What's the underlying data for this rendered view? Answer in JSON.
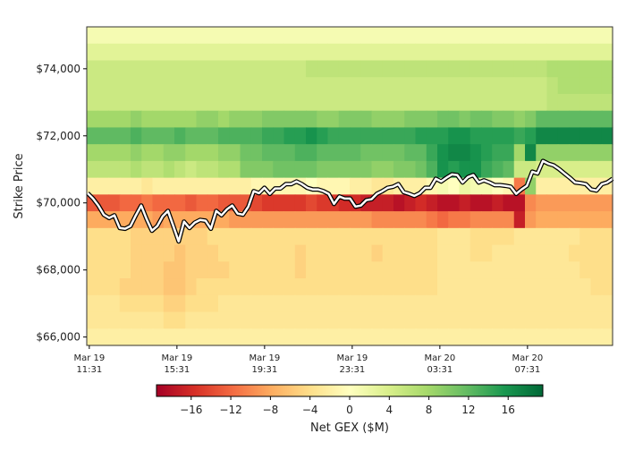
{
  "chart_data": {
    "type": "heatmap",
    "ylabel": "Strike Price",
    "colorbar_label": "Net GEX ($M)",
    "colormap": "RdYlGn",
    "color_range": [
      -19.5,
      19.5
    ],
    "colorbar_ticks": [
      "−16",
      "−12",
      "−8",
      "−4",
      "0",
      "4",
      "8",
      "12",
      "16"
    ],
    "colorbar_tick_values": [
      -16,
      -12,
      -8,
      -4,
      0,
      4,
      8,
      12,
      16
    ],
    "time_range": [
      "Mar 19 11:24",
      "Mar 20 11:24"
    ],
    "x_ticks": [
      {
        "line1": "Mar 19",
        "line2": "11:31"
      },
      {
        "line1": "Mar 19",
        "line2": "15:31"
      },
      {
        "line1": "Mar 19",
        "line2": "19:31"
      },
      {
        "line1": "Mar 19",
        "line2": "23:31"
      },
      {
        "line1": "Mar 20",
        "line2": "03:31"
      },
      {
        "line1": "Mar 20",
        "line2": "07:31"
      }
    ],
    "y_ticks": [
      {
        "value": 74000,
        "label": "$74,000"
      },
      {
        "value": 72000,
        "label": "$72,000"
      },
      {
        "value": 70000,
        "label": "$70,000"
      },
      {
        "value": 68000,
        "label": "$68,000"
      },
      {
        "value": 66000,
        "label": "$66,000"
      }
    ],
    "ylim": [
      65750,
      75250
    ],
    "strikes": [
      75000,
      74500,
      74000,
      73500,
      73000,
      72500,
      72000,
      71500,
      71000,
      70500,
      70000,
      69500,
      69000,
      68500,
      68000,
      67500,
      67000,
      66500,
      66000
    ],
    "z": [
      [
        1,
        1,
        1,
        1,
        1,
        1,
        1,
        1,
        1,
        1,
        1,
        1,
        1,
        1,
        1,
        1,
        1,
        1,
        1,
        1,
        1,
        1,
        1,
        1,
        1,
        1,
        1,
        1,
        1,
        1,
        1,
        1,
        1,
        1,
        1,
        1,
        1,
        1,
        1,
        1,
        1,
        1,
        1,
        1,
        1,
        1,
        1,
        1
      ],
      [
        3,
        3,
        3,
        3,
        3,
        3,
        3,
        3,
        3,
        3,
        3,
        3,
        3,
        3,
        3,
        3,
        3,
        3,
        3,
        3,
        3,
        3,
        3,
        3,
        3,
        3,
        3,
        3,
        3,
        3,
        3,
        3,
        3,
        3,
        3,
        3,
        3,
        3,
        3,
        3,
        3,
        3,
        3,
        3,
        3,
        3,
        3,
        3
      ],
      [
        5,
        5,
        5,
        5,
        5,
        5,
        5,
        5,
        5,
        5,
        5,
        5,
        5,
        5,
        5,
        5,
        5,
        5,
        5,
        5,
        6,
        6,
        6,
        6,
        6,
        6,
        6,
        6,
        6,
        6,
        6,
        6,
        6,
        6,
        6,
        6,
        6,
        6,
        6,
        6,
        6,
        6,
        7,
        7,
        7,
        7,
        7,
        7
      ],
      [
        5,
        5,
        5,
        5,
        5,
        5,
        5,
        5,
        5,
        5,
        5,
        5,
        5,
        5,
        5,
        5,
        5,
        5,
        5,
        5,
        5,
        5,
        5,
        5,
        5,
        5,
        5,
        5,
        5,
        5,
        5,
        5,
        5,
        5,
        5,
        5,
        5,
        5,
        5,
        5,
        5,
        5,
        6,
        7,
        7,
        7,
        7,
        7
      ],
      [
        5,
        5,
        5,
        5,
        5,
        5,
        5,
        5,
        5,
        5,
        5,
        5,
        5,
        5,
        5,
        5,
        5,
        5,
        5,
        5,
        5,
        5,
        5,
        5,
        5,
        5,
        5,
        5,
        5,
        5,
        5,
        5,
        5,
        5,
        5,
        5,
        5,
        5,
        5,
        5,
        5,
        5,
        6,
        6,
        6,
        6,
        6,
        6
      ],
      [
        8,
        8,
        8,
        8,
        9,
        8,
        8,
        8,
        8,
        8,
        9,
        9,
        8,
        9,
        9,
        9,
        10,
        10,
        10,
        10,
        10,
        9,
        9,
        10,
        10,
        10,
        9,
        9,
        9,
        10,
        10,
        10,
        11,
        11,
        10,
        11,
        11,
        10,
        10,
        9,
        10,
        12,
        12,
        12,
        12,
        12,
        12,
        12
      ],
      [
        12,
        12,
        12,
        12,
        13,
        12,
        12,
        12,
        13,
        12,
        12,
        12,
        13,
        13,
        13,
        13,
        14,
        14,
        15,
        15,
        16,
        15,
        14,
        14,
        14,
        14,
        14,
        14,
        14,
        14,
        15,
        15,
        15,
        16,
        16,
        15,
        15,
        15,
        15,
        14,
        15,
        17,
        17,
        17,
        17,
        17,
        17,
        17
      ],
      [
        8,
        8,
        8,
        8,
        9,
        8,
        8,
        9,
        9,
        8,
        8,
        8,
        9,
        9,
        11,
        11,
        12,
        12,
        12,
        13,
        13,
        12,
        12,
        12,
        12,
        11,
        11,
        11,
        11,
        12,
        12,
        14,
        16,
        17,
        17,
        16,
        15,
        14,
        14,
        8,
        17,
        9,
        9,
        9,
        9,
        9,
        9,
        9
      ],
      [
        6,
        6,
        6,
        6,
        7,
        6,
        6,
        7,
        6,
        5,
        6,
        6,
        7,
        7,
        10,
        10,
        10,
        11,
        11,
        11,
        11,
        10,
        10,
        10,
        10,
        10,
        9,
        9,
        10,
        10,
        11,
        13,
        16,
        15,
        16,
        16,
        14,
        13,
        12,
        5,
        5,
        4,
        4,
        4,
        4,
        4,
        4,
        4
      ],
      [
        -2,
        -2,
        -2,
        -2,
        -2,
        -3,
        -2,
        -2,
        -2,
        -2,
        -2,
        -2,
        -2,
        -2,
        -2,
        -1,
        -1,
        -1,
        -1,
        -1,
        0,
        -1,
        -1,
        -1,
        -2,
        -2,
        -3,
        -3,
        -2,
        -2,
        -2,
        -1,
        1,
        0,
        2,
        1,
        1,
        0,
        -1,
        -11,
        9,
        -2,
        -2,
        -2,
        -2,
        -2,
        -2,
        -2
      ],
      [
        -13,
        -13,
        -13,
        -12,
        -12,
        -11,
        -12,
        -12,
        -12,
        -13,
        -12,
        -12,
        -13,
        -13,
        -13,
        -14,
        -15,
        -15,
        -15,
        -15,
        -14,
        -15,
        -15,
        -16,
        -16,
        -17,
        -17,
        -17,
        -18,
        -17,
        -16,
        -17,
        -18,
        -18,
        -17,
        -18,
        -18,
        -17,
        -18,
        -18,
        -10,
        -9,
        -9,
        -9,
        -9,
        -9,
        -9,
        -9
      ],
      [
        -8,
        -8,
        -8,
        -8,
        -8,
        -8,
        -9,
        -8,
        -8,
        -8,
        -8,
        -8,
        -8,
        -9,
        -9,
        -9,
        -9,
        -9,
        -9,
        -9,
        -9,
        -9,
        -9,
        -9,
        -9,
        -9,
        -10,
        -10,
        -10,
        -10,
        -10,
        -11,
        -12,
        -11,
        -11,
        -10,
        -10,
        -10,
        -10,
        -17,
        -9,
        -8,
        -8,
        -8,
        -8,
        -8,
        -8,
        -8
      ],
      [
        -4,
        -4,
        -4,
        -4,
        -5,
        -5,
        -5,
        -5,
        -5,
        -5,
        -5,
        -4,
        -4,
        -4,
        -4,
        -4,
        -4,
        -4,
        -4,
        -4,
        -4,
        -4,
        -4,
        -4,
        -4,
        -4,
        -4,
        -4,
        -4,
        -4,
        -4,
        -4,
        -3,
        -3,
        -3,
        -4,
        -4,
        -4,
        -4,
        -3,
        -3,
        -3,
        -3,
        -3,
        -3,
        -4,
        -4,
        -4
      ],
      [
        -4,
        -4,
        -4,
        -4,
        -5,
        -5,
        -5,
        -5,
        -6,
        -5,
        -5,
        -5,
        -4,
        -4,
        -4,
        -4,
        -4,
        -4,
        -4,
        -5,
        -4,
        -4,
        -4,
        -4,
        -4,
        -4,
        -5,
        -4,
        -4,
        -4,
        -4,
        -4,
        -3,
        -3,
        -3,
        -4,
        -4,
        -3,
        -3,
        -3,
        -3,
        -3,
        -3,
        -3,
        -4,
        -4,
        -4,
        -4
      ],
      [
        -4,
        -4,
        -4,
        -4,
        -5,
        -5,
        -5,
        -6,
        -6,
        -5,
        -5,
        -5,
        -5,
        -4,
        -4,
        -4,
        -4,
        -4,
        -4,
        -5,
        -4,
        -4,
        -4,
        -4,
        -4,
        -4,
        -4,
        -4,
        -4,
        -4,
        -4,
        -4,
        -3,
        -3,
        -3,
        -3,
        -3,
        -3,
        -3,
        -3,
        -3,
        -3,
        -3,
        -3,
        -3,
        -4,
        -4,
        -4
      ],
      [
        -4,
        -4,
        -4,
        -5,
        -5,
        -5,
        -5,
        -6,
        -6,
        -5,
        -4,
        -4,
        -4,
        -4,
        -4,
        -4,
        -4,
        -4,
        -4,
        -4,
        -4,
        -4,
        -4,
        -4,
        -4,
        -4,
        -4,
        -4,
        -4,
        -4,
        -4,
        -4,
        -3,
        -3,
        -3,
        -3,
        -3,
        -3,
        -3,
        -3,
        -3,
        -3,
        -3,
        -3,
        -3,
        -3,
        -4,
        -4
      ],
      [
        -3,
        -3,
        -3,
        -4,
        -4,
        -4,
        -4,
        -5,
        -5,
        -4,
        -4,
        -4,
        -3,
        -3,
        -3,
        -3,
        -3,
        -3,
        -3,
        -3,
        -3,
        -3,
        -3,
        -3,
        -3,
        -3,
        -3,
        -3,
        -3,
        -3,
        -3,
        -3,
        -3,
        -3,
        -3,
        -3,
        -3,
        -3,
        -3,
        -3,
        -3,
        -3,
        -3,
        -3,
        -3,
        -3,
        -3,
        -3
      ],
      [
        -3,
        -3,
        -3,
        -3,
        -3,
        -3,
        -3,
        -4,
        -4,
        -3,
        -3,
        -3,
        -3,
        -3,
        -3,
        -3,
        -3,
        -3,
        -3,
        -3,
        -3,
        -3,
        -3,
        -3,
        -3,
        -3,
        -3,
        -3,
        -3,
        -3,
        -3,
        -3,
        -3,
        -3,
        -3,
        -3,
        -3,
        -3,
        -3,
        -3,
        -3,
        -3,
        -3,
        -3,
        -3,
        -3,
        -3,
        -3
      ],
      [
        -2,
        -2,
        -2,
        -2,
        -2,
        -2,
        -2,
        -2,
        -2,
        -2,
        -2,
        -2,
        -2,
        -2,
        -2,
        -2,
        -2,
        -2,
        -2,
        -2,
        -2,
        -2,
        -2,
        -2,
        -2,
        -2,
        -2,
        -2,
        -2,
        -2,
        -2,
        -2,
        -2,
        -2,
        -2,
        -2,
        -2,
        -2,
        -2,
        -2,
        -2,
        -2,
        -2,
        -2,
        -2,
        -2,
        -2,
        -2
      ]
    ],
    "spot_price": [
      70290,
      70130,
      69920,
      69650,
      69550,
      69630,
      69250,
      69230,
      69310,
      69630,
      69920,
      69520,
      69170,
      69310,
      69600,
      69760,
      69310,
      68850,
      69440,
      69250,
      69410,
      69490,
      69470,
      69230,
      69760,
      69630,
      69810,
      69920,
      69680,
      69650,
      69890,
      70350,
      70290,
      70450,
      70270,
      70430,
      70430,
      70560,
      70560,
      70640,
      70560,
      70450,
      70400,
      70400,
      70350,
      70270,
      69970,
      70190,
      70130,
      70130,
      69890,
      69920,
      70080,
      70110,
      70270,
      70350,
      70450,
      70480,
      70560,
      70320,
      70270,
      70210,
      70290,
      70450,
      70450,
      70720,
      70640,
      70750,
      70850,
      70830,
      70610,
      70770,
      70830,
      70610,
      70670,
      70610,
      70530,
      70530,
      70510,
      70480,
      70270,
      70400,
      70510,
      70930,
      70880,
      71250,
      71170,
      71120,
      71010,
      70880,
      70750,
      70610,
      70590,
      70560,
      70400,
      70370,
      70560,
      70610,
      70720
    ]
  }
}
